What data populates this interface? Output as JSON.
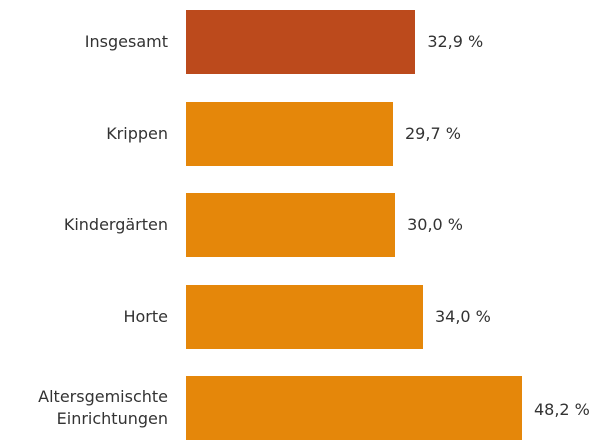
{
  "chart_data": {
    "type": "bar",
    "orientation": "horizontal",
    "categories": [
      "Insgesamt",
      "Krippen",
      "Kindergärten",
      "Horte",
      "Altersgemischte Einrichtungen"
    ],
    "values": [
      32.9,
      29.7,
      30.0,
      34.0,
      48.2
    ],
    "value_labels": [
      "32,9 %",
      "29,7 %",
      "30,0 %",
      "34,0 %",
      "48,2 %"
    ],
    "colors": [
      "#bc4a1c",
      "#e5870a",
      "#e5870a",
      "#e5870a",
      "#e5870a"
    ]
  }
}
